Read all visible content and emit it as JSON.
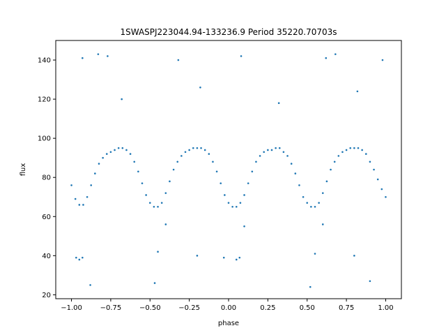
{
  "chart_data": {
    "type": "scatter",
    "title": "1SWASPJ223044.94-133236.9 Period 35220.70703s",
    "xlabel": "phase",
    "ylabel": "flux",
    "xlim": [
      -1.1,
      1.1
    ],
    "ylim": [
      18,
      150
    ],
    "x_ticks": [
      -1.0,
      -0.75,
      -0.5,
      -0.25,
      0.0,
      0.25,
      0.5,
      0.75,
      1.0
    ],
    "x_tick_labels": [
      "−1.00",
      "−0.75",
      "−0.50",
      "−0.25",
      "0.00",
      "0.25",
      "0.50",
      "0.75",
      "1.00"
    ],
    "y_ticks": [
      20,
      40,
      60,
      80,
      100,
      120,
      140
    ],
    "y_tick_labels": [
      "20",
      "40",
      "60",
      "80",
      "100",
      "120",
      "140"
    ],
    "grid": false,
    "marker_color": "#1f77b4",
    "series": [
      {
        "points": [
          [
            -1.0,
            76
          ],
          [
            -0.975,
            69
          ],
          [
            -0.95,
            66
          ],
          [
            -0.925,
            66
          ],
          [
            -0.9,
            70
          ],
          [
            -0.875,
            76
          ],
          [
            -0.85,
            82
          ],
          [
            -0.825,
            87
          ],
          [
            -0.8,
            90
          ],
          [
            -0.775,
            92
          ],
          [
            -0.75,
            93
          ],
          [
            -0.725,
            94
          ],
          [
            -0.7,
            95
          ],
          [
            -0.675,
            95
          ],
          [
            -0.65,
            94
          ],
          [
            -0.625,
            92
          ],
          [
            -0.6,
            88
          ],
          [
            -0.575,
            83
          ],
          [
            -0.55,
            77
          ],
          [
            -0.525,
            71
          ],
          [
            -0.5,
            67
          ],
          [
            -0.475,
            65
          ],
          [
            -0.45,
            65
          ],
          [
            -0.425,
            67
          ],
          [
            -0.4,
            72
          ],
          [
            -0.375,
            78
          ],
          [
            -0.35,
            84
          ],
          [
            -0.325,
            88
          ],
          [
            -0.3,
            91
          ],
          [
            -0.275,
            93
          ],
          [
            -0.25,
            94
          ],
          [
            -0.225,
            95
          ],
          [
            -0.2,
            95
          ],
          [
            -0.175,
            95
          ],
          [
            -0.15,
            94
          ],
          [
            -0.125,
            92
          ],
          [
            -0.1,
            88
          ],
          [
            -0.075,
            83
          ],
          [
            -0.05,
            77
          ],
          [
            -0.025,
            71
          ],
          [
            0.0,
            67
          ],
          [
            0.025,
            65
          ],
          [
            0.05,
            65
          ],
          [
            0.075,
            67
          ],
          [
            0.1,
            71
          ],
          [
            0.125,
            77
          ],
          [
            0.15,
            83
          ],
          [
            0.175,
            88
          ],
          [
            0.2,
            91
          ],
          [
            0.225,
            93
          ],
          [
            0.25,
            94
          ],
          [
            0.275,
            94
          ],
          [
            0.3,
            95
          ],
          [
            0.325,
            95
          ],
          [
            0.35,
            93
          ],
          [
            0.375,
            91
          ],
          [
            0.4,
            87
          ],
          [
            0.425,
            82
          ],
          [
            0.45,
            76
          ],
          [
            0.475,
            70
          ],
          [
            0.5,
            67
          ],
          [
            0.525,
            65
          ],
          [
            0.55,
            65
          ],
          [
            0.575,
            67
          ],
          [
            0.6,
            72
          ],
          [
            0.625,
            78
          ],
          [
            0.65,
            84
          ],
          [
            0.675,
            88
          ],
          [
            0.7,
            91
          ],
          [
            0.725,
            93
          ],
          [
            0.75,
            94
          ],
          [
            0.775,
            95
          ],
          [
            0.8,
            95
          ],
          [
            0.825,
            95
          ],
          [
            0.85,
            94
          ],
          [
            0.875,
            92
          ],
          [
            0.9,
            88
          ],
          [
            0.925,
            84
          ],
          [
            0.95,
            79
          ],
          [
            0.975,
            74
          ],
          [
            1.0,
            70
          ],
          [
            -0.97,
            39
          ],
          [
            -0.95,
            38
          ],
          [
            -0.93,
            39
          ],
          [
            -0.03,
            39
          ],
          [
            0.05,
            38
          ],
          [
            0.07,
            39
          ],
          [
            -0.45,
            42
          ],
          [
            -0.2,
            40
          ],
          [
            0.55,
            41
          ],
          [
            0.8,
            40
          ],
          [
            -0.93,
            141
          ],
          [
            -0.83,
            143
          ],
          [
            -0.77,
            142
          ],
          [
            -0.32,
            140
          ],
          [
            0.08,
            142
          ],
          [
            0.62,
            141
          ],
          [
            0.68,
            143
          ],
          [
            0.98,
            140
          ],
          [
            -0.68,
            120
          ],
          [
            -0.18,
            126
          ],
          [
            0.32,
            118
          ],
          [
            0.82,
            124
          ],
          [
            -0.4,
            56
          ],
          [
            0.1,
            55
          ],
          [
            0.6,
            56
          ],
          [
            -0.88,
            25
          ],
          [
            -0.47,
            26
          ],
          [
            0.52,
            24
          ],
          [
            0.9,
            27
          ]
        ]
      }
    ]
  }
}
